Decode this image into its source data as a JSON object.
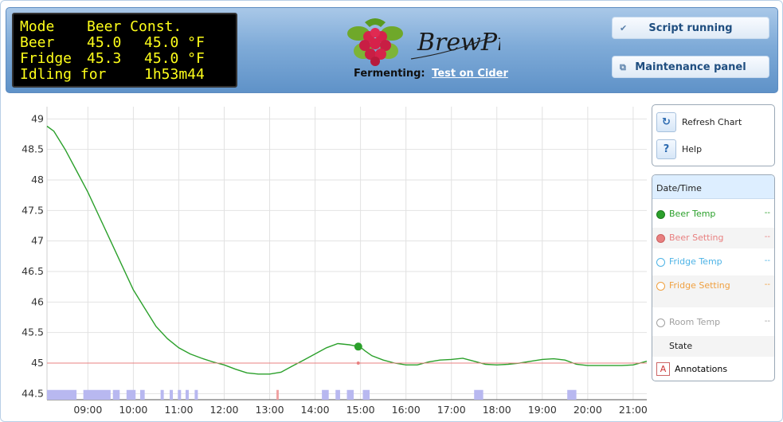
{
  "lcd": {
    "lines": [
      [
        "Mode",
        "Beer Const."
      ],
      [
        "Beer",
        "45.0",
        "45.0 °F"
      ],
      [
        "Fridge",
        "45.3",
        "45.0 °F"
      ],
      [
        "Idling for",
        "1h53m44"
      ]
    ]
  },
  "logo": {
    "text": "BrewPi"
  },
  "fermenting": {
    "label": "Fermenting:",
    "name": "Test on Cider"
  },
  "buttons": {
    "script": "Script running",
    "maintenance": "Maintenance panel"
  },
  "controls": {
    "refresh": "Refresh Chart",
    "help": "Help"
  },
  "legend": {
    "header": "Date/Time",
    "items": [
      {
        "label": "Beer Temp",
        "value": "--",
        "color": "#2ba02b"
      },
      {
        "label": "Beer Setting",
        "value": "--",
        "color": "#e88080"
      },
      {
        "label": "Fridge Temp",
        "value": "--",
        "color": "#4db3e6"
      },
      {
        "label": "Fridge Setting",
        "value": "--",
        "color": "#f0a040"
      },
      {
        "label": "Room Temp",
        "value": "--",
        "color": "#a0a0a0"
      },
      {
        "label": "State",
        "value": "",
        "color": "#ffffff"
      }
    ],
    "annotations": "Annotations"
  },
  "chart_data": {
    "type": "line",
    "xlim": [
      8.1,
      21.3
    ],
    "ylim": [
      44.4,
      49.2
    ],
    "xtick_labels": [
      "09:00",
      "10:00",
      "11:00",
      "12:00",
      "13:00",
      "14:00",
      "15:00",
      "16:00",
      "17:00",
      "18:00",
      "19:00",
      "20:00",
      "21:00"
    ],
    "xtick_values": [
      9,
      10,
      11,
      12,
      13,
      14,
      15,
      16,
      17,
      18,
      19,
      20,
      21
    ],
    "ytick_labels": [
      "44.5",
      "45",
      "45.5",
      "46",
      "46.5",
      "47",
      "47.5",
      "48",
      "48.5",
      "49"
    ],
    "ytick_values": [
      44.5,
      45,
      45.5,
      46,
      46.5,
      47,
      47.5,
      48,
      48.5,
      49
    ],
    "grid": true,
    "series": [
      {
        "name": "Beer Temp",
        "color": "#2ba02b",
        "x": [
          8.1,
          8.25,
          8.5,
          8.75,
          9.0,
          9.25,
          9.5,
          9.75,
          10.0,
          10.25,
          10.5,
          10.75,
          11.0,
          11.25,
          11.5,
          11.75,
          12.0,
          12.25,
          12.5,
          12.75,
          13.0,
          13.25,
          13.5,
          13.75,
          14.0,
          14.25,
          14.5,
          14.75,
          14.9,
          15.0,
          15.1,
          15.25,
          15.5,
          15.75,
          16.0,
          16.25,
          16.5,
          16.75,
          17.0,
          17.25,
          17.5,
          17.75,
          18.0,
          18.25,
          18.5,
          18.75,
          19.0,
          19.25,
          19.5,
          19.75,
          20.0,
          20.25,
          20.5,
          20.75,
          21.0,
          21.3
        ],
        "y": [
          48.88,
          48.8,
          48.5,
          48.15,
          47.8,
          47.4,
          47.0,
          46.6,
          46.2,
          45.9,
          45.6,
          45.4,
          45.25,
          45.15,
          45.08,
          45.02,
          44.97,
          44.9,
          44.84,
          44.82,
          44.82,
          44.85,
          44.95,
          45.05,
          45.15,
          45.25,
          45.32,
          45.3,
          45.28,
          45.26,
          45.2,
          45.12,
          45.05,
          45.0,
          44.97,
          44.97,
          45.02,
          45.05,
          45.06,
          45.08,
          45.03,
          44.98,
          44.97,
          44.98,
          45.0,
          45.03,
          45.06,
          45.07,
          45.05,
          44.98,
          44.96,
          44.96,
          44.96,
          44.96,
          44.97,
          45.03
        ]
      },
      {
        "name": "Beer Setting",
        "color": "#e88080",
        "x": [
          8.1,
          21.3
        ],
        "y": [
          45.0,
          45.0
        ]
      }
    ],
    "markers": [
      {
        "series": "Beer Temp",
        "x": 14.95,
        "y": 45.27
      },
      {
        "series": "Beer Setting",
        "x": 14.95,
        "y": 45.0
      }
    ],
    "state_bands": [
      [
        8.1,
        8.75
      ],
      [
        8.9,
        9.5
      ],
      [
        9.55,
        9.7
      ],
      [
        9.85,
        10.05
      ],
      [
        10.15,
        10.25
      ],
      [
        10.6,
        10.67
      ],
      [
        10.8,
        10.87
      ],
      [
        10.98,
        11.05
      ],
      [
        11.15,
        11.22
      ],
      [
        11.35,
        11.42
      ],
      [
        14.15,
        14.3
      ],
      [
        14.45,
        14.55
      ],
      [
        14.7,
        14.85
      ],
      [
        15.05,
        15.2
      ],
      [
        17.5,
        17.7
      ],
      [
        19.55,
        19.75
      ]
    ],
    "state_marks": [
      [
        13.15,
        13.2
      ]
    ]
  }
}
